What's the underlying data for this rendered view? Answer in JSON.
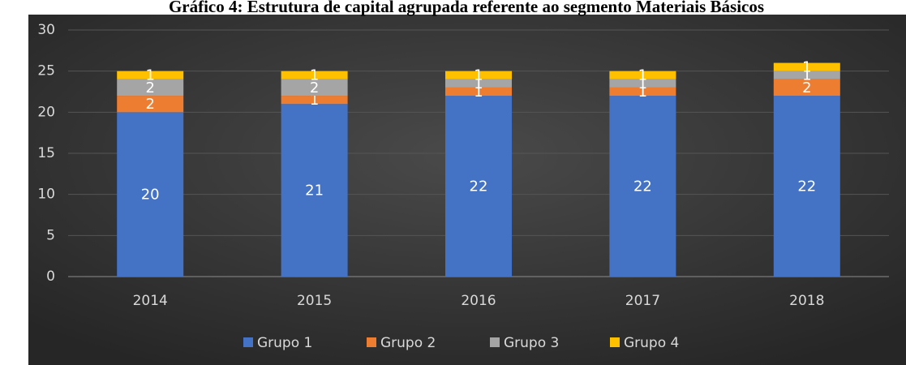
{
  "chart_data": {
    "type": "stacked_bar",
    "title": "Gráfico 4: Estrutura de capital agrupada referente ao segmento Materiais Básicos",
    "categories": [
      "2014",
      "2015",
      "2016",
      "2017",
      "2018"
    ],
    "series": [
      {
        "name": "Grupo 1",
        "color": "#4472c4",
        "values": [
          20,
          21,
          22,
          22,
          22
        ]
      },
      {
        "name": "Grupo 2",
        "color": "#ed7d31",
        "values": [
          2,
          1,
          1,
          1,
          2
        ]
      },
      {
        "name": "Grupo 3",
        "color": "#a5a5a5",
        "values": [
          2,
          2,
          1,
          1,
          1
        ]
      },
      {
        "name": "Grupo 4",
        "color": "#ffc000",
        "values": [
          1,
          1,
          1,
          1,
          1
        ]
      }
    ],
    "ylim": [
      0,
      30
    ],
    "yticks": [
      0,
      5,
      10,
      15,
      20,
      25,
      30
    ],
    "grid": true,
    "legend": "bottom"
  }
}
